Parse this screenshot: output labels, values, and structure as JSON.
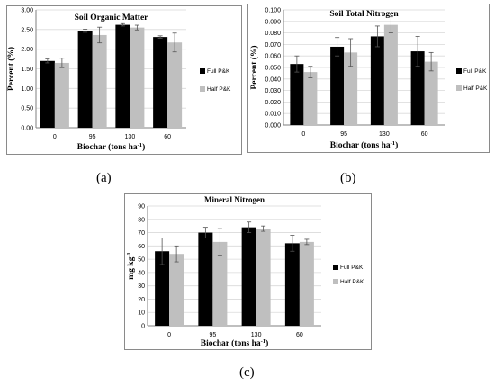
{
  "colors": {
    "full": "#000000",
    "half": "#bfbfbf",
    "frame": "#8a8a8a",
    "grid": "#d9d9d9"
  },
  "captions": [
    "(a)",
    "(b)",
    "(c)"
  ],
  "chart_data": [
    {
      "type": "bar",
      "title": "Soil Organic Matter",
      "xlabel": "Biochar (tons ha",
      "xlabel_sup": "-1",
      "xlabel_end": ")",
      "ylabel": "Percent (%)",
      "categories": [
        "0",
        "95",
        "130",
        "60"
      ],
      "ylim": [
        0,
        3
      ],
      "yticks": [
        "0.00",
        "0.50",
        "1.00",
        "1.50",
        "2.00",
        "2.50",
        "3.00"
      ],
      "series": [
        {
          "name": "Full P&K",
          "values": [
            1.7,
            2.47,
            2.62,
            2.31
          ],
          "errors": [
            0.05,
            0.04,
            0.03,
            0.03
          ]
        },
        {
          "name": "Half P&K",
          "values": [
            1.65,
            2.36,
            2.55,
            2.17
          ],
          "errors": [
            0.12,
            0.2,
            0.06,
            0.24
          ]
        }
      ],
      "legend": "right",
      "grid": true
    },
    {
      "type": "bar",
      "title": "Soil Total Nitrogen",
      "xlabel": "Biochar (tons ha",
      "xlabel_sup": "-1",
      "xlabel_end": ")",
      "ylabel": "Percent (%)",
      "categories": [
        "0",
        "95",
        "130",
        "60"
      ],
      "ylim": [
        0,
        0.1
      ],
      "yticks": [
        "0.000",
        "0.010",
        "0.020",
        "0.030",
        "0.040",
        "0.050",
        "0.060",
        "0.070",
        "0.080",
        "0.090",
        "0.100"
      ],
      "series": [
        {
          "name": "Full P&K",
          "values": [
            0.053,
            0.068,
            0.077,
            0.064
          ],
          "errors": [
            0.007,
            0.008,
            0.009,
            0.013
          ]
        },
        {
          "name": "Half P&K",
          "values": [
            0.046,
            0.063,
            0.087,
            0.055
          ],
          "errors": [
            0.005,
            0.012,
            0.007,
            0.008
          ]
        }
      ],
      "legend": "right",
      "grid": true
    },
    {
      "type": "bar",
      "title": "Mineral Nitrogen",
      "xlabel": "Biochar (tons ha",
      "xlabel_sup": "-1",
      "xlabel_end": ")",
      "ylabel": "mg kg",
      "ylabel_sup": "-1",
      "categories": [
        "0",
        "95",
        "130",
        "60"
      ],
      "ylim": [
        0,
        90
      ],
      "yticks": [
        "0",
        "10",
        "20",
        "30",
        "40",
        "50",
        "60",
        "70",
        "80",
        "90"
      ],
      "series": [
        {
          "name": "Full P&K",
          "values": [
            56,
            70,
            74,
            62
          ],
          "errors": [
            10,
            4,
            4,
            6
          ]
        },
        {
          "name": "Half P&K",
          "values": [
            54,
            63,
            73,
            63
          ],
          "errors": [
            6,
            10,
            2,
            2
          ]
        }
      ],
      "legend": "right",
      "grid": true
    }
  ]
}
